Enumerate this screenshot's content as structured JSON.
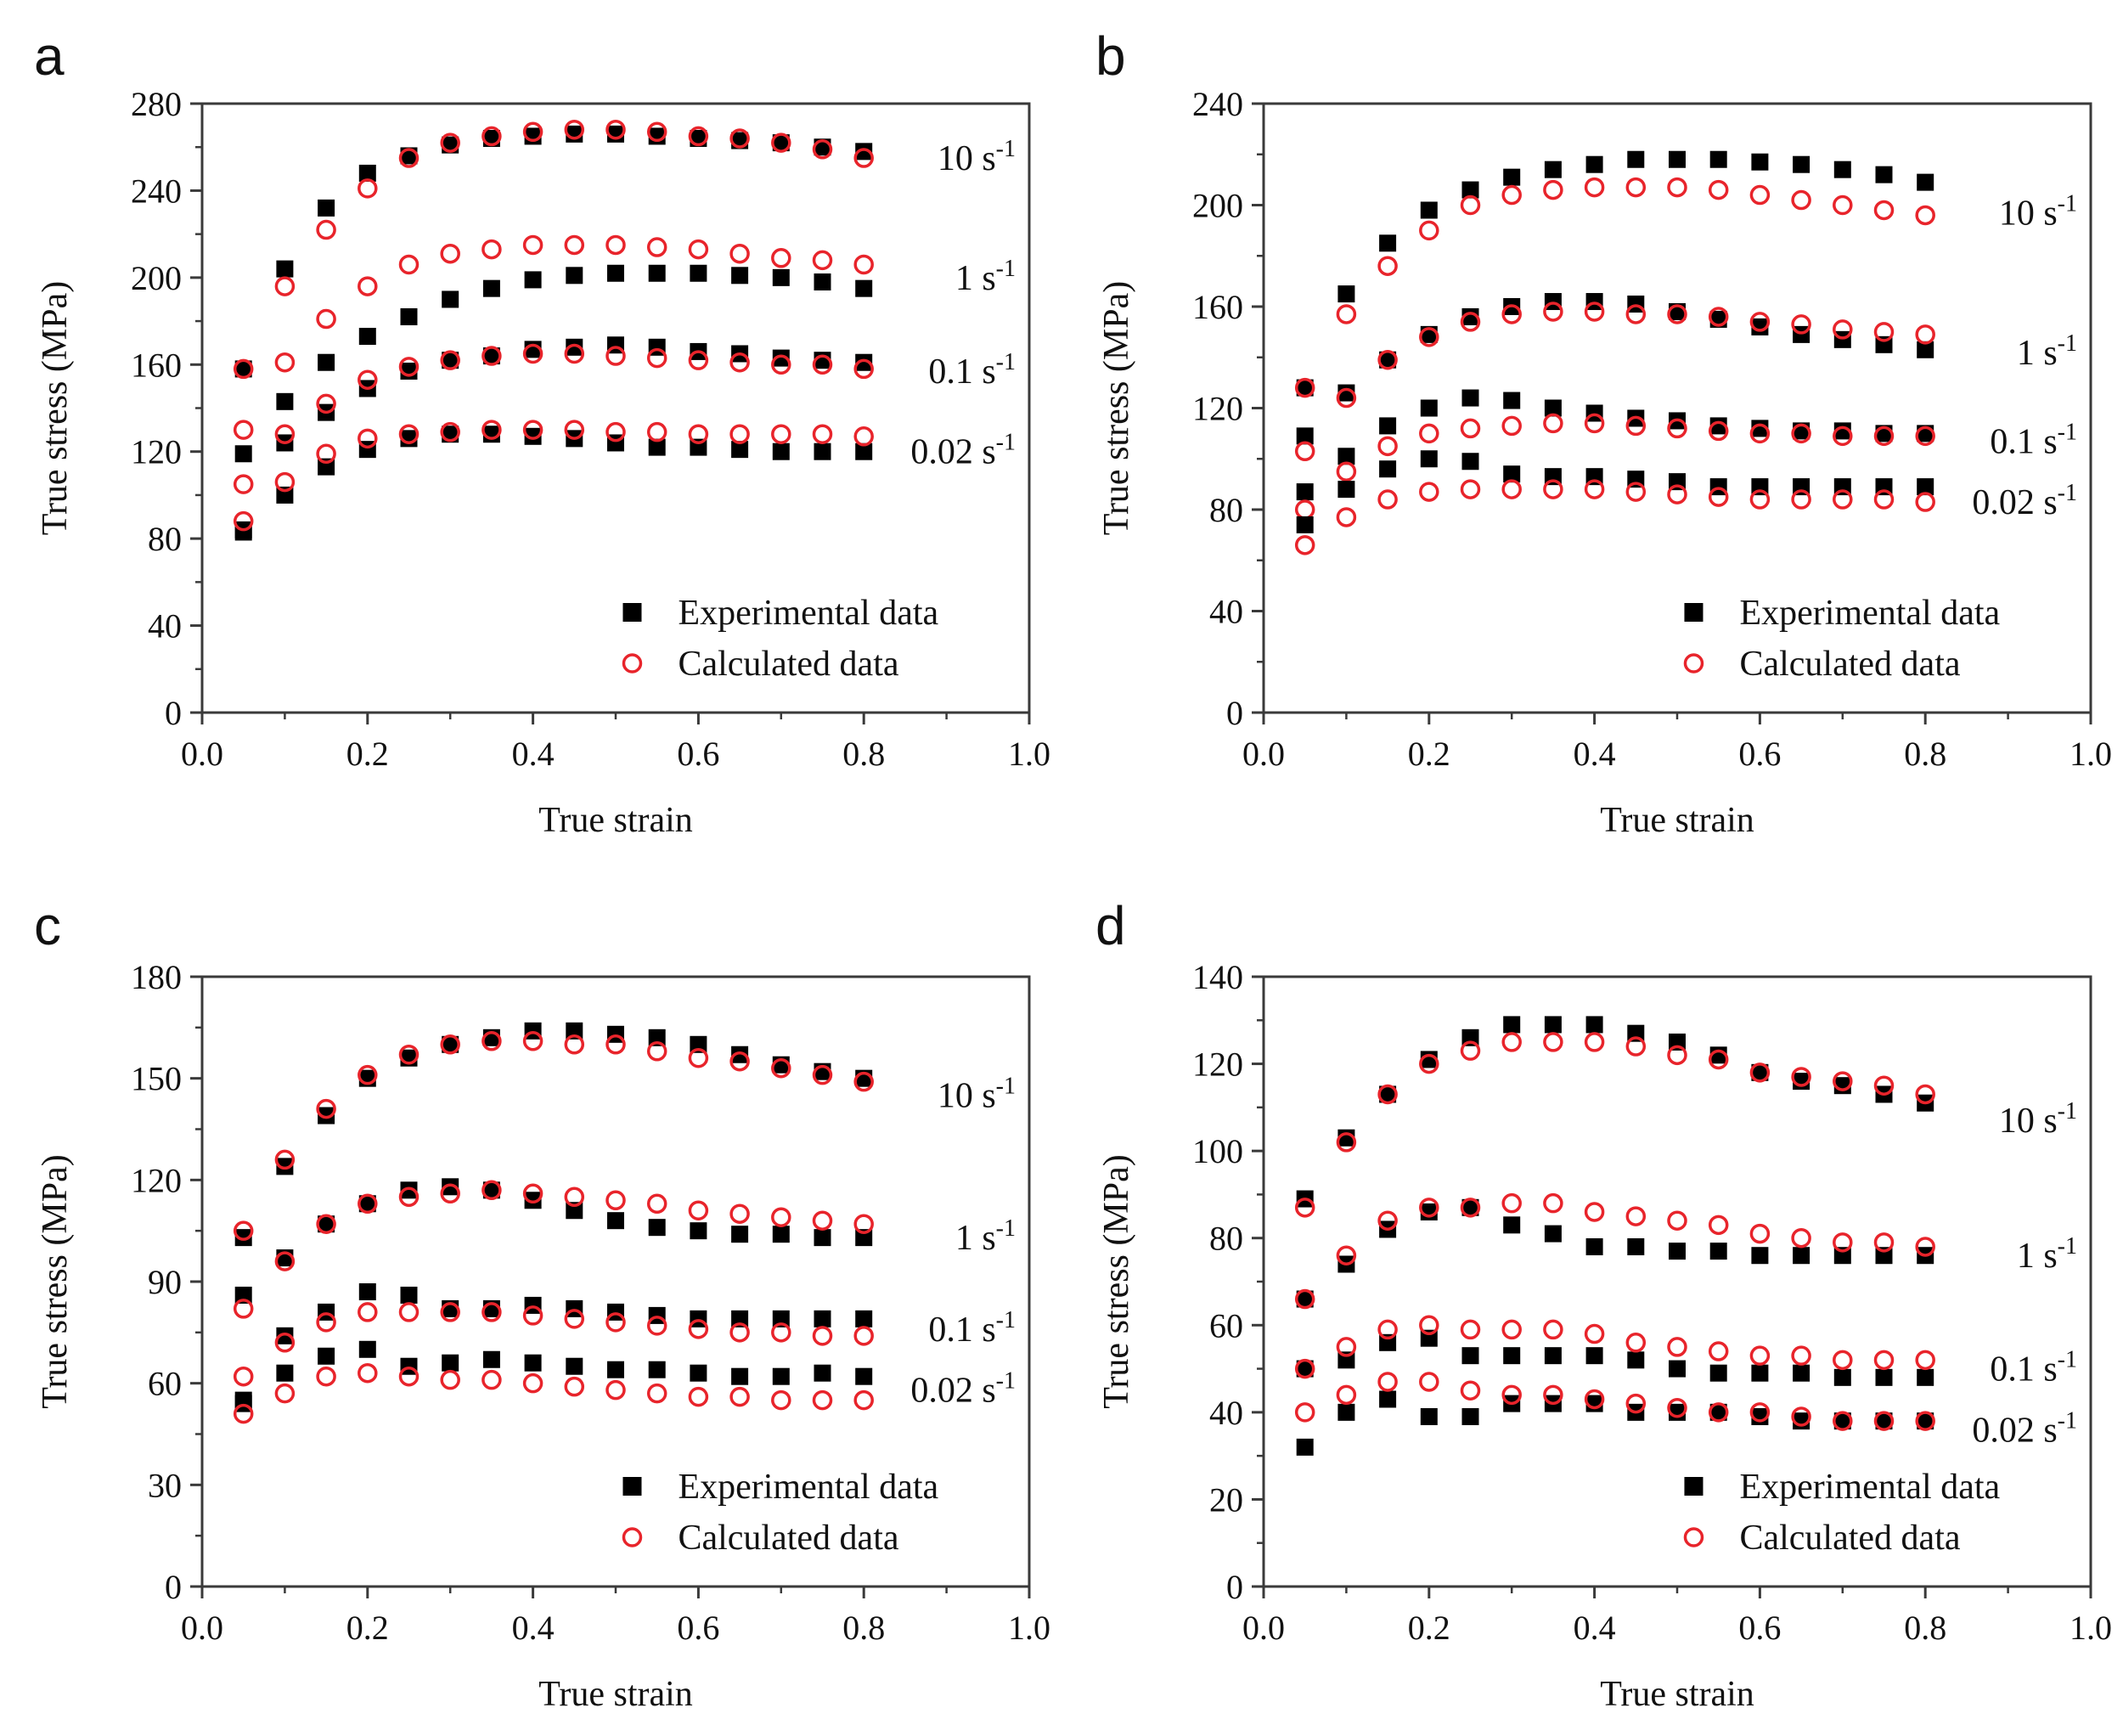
{
  "colors": {
    "experimental": "#000000",
    "calculated": "#e8242b",
    "axis": "#3a3a3a"
  },
  "chart_data": [
    {
      "type": "scatter",
      "panel": "a",
      "xlabel": "True strain",
      "ylabel": "True stress (MPa)",
      "xlim": [
        0,
        1.0
      ],
      "ylim": [
        0,
        280
      ],
      "xticks": [
        "0.0",
        "0.2",
        "0.4",
        "0.6",
        "0.8",
        "1.0"
      ],
      "yticks": [
        "0",
        "40",
        "80",
        "120",
        "160",
        "200",
        "240",
        "280"
      ],
      "legend": {
        "position": "bottom-right",
        "experimental": "Experimental data",
        "calculated": "Calculated data"
      },
      "x": [
        0.05,
        0.1,
        0.15,
        0.2,
        0.25,
        0.3,
        0.35,
        0.4,
        0.45,
        0.5,
        0.55,
        0.6,
        0.65,
        0.7,
        0.75,
        0.8
      ],
      "series": [
        {
          "name": "10 s-1",
          "label": "10 s",
          "label_y": 255,
          "experimental": [
            158,
            204,
            232,
            248,
            256,
            261,
            264,
            265,
            266,
            266,
            265,
            264,
            263,
            262,
            260,
            258
          ],
          "calculated": [
            158,
            196,
            222,
            241,
            255,
            262,
            265,
            267,
            268,
            268,
            267,
            265,
            264,
            262,
            259,
            255
          ]
        },
        {
          "name": "1 s-1",
          "label": "1 s",
          "label_y": 200,
          "experimental": [
            119,
            143,
            161,
            173,
            182,
            190,
            195,
            199,
            201,
            202,
            202,
            202,
            201,
            200,
            198,
            195
          ],
          "calculated": [
            130,
            161,
            181,
            196,
            206,
            211,
            213,
            215,
            215,
            215,
            214,
            213,
            211,
            209,
            208,
            206
          ]
        },
        {
          "name": "0.1 s-1",
          "label": "0.1 s",
          "label_y": 157,
          "experimental": [
            84,
            124,
            138,
            149,
            157,
            162,
            164,
            167,
            168,
            169,
            168,
            166,
            165,
            163,
            162,
            161
          ],
          "calculated": [
            105,
            128,
            142,
            153,
            159,
            162,
            164,
            165,
            165,
            164,
            163,
            162,
            161,
            160,
            160,
            158
          ]
        },
        {
          "name": "0.02 s-1",
          "label": "0.02 s",
          "label_y": 120,
          "experimental": [
            83,
            100,
            113,
            121,
            126,
            128,
            128,
            127,
            126,
            124,
            122,
            122,
            121,
            120,
            120,
            120
          ],
          "calculated": [
            88,
            106,
            119,
            126,
            128,
            129,
            130,
            130,
            130,
            129,
            129,
            128,
            128,
            128,
            128,
            127
          ]
        }
      ]
    },
    {
      "type": "scatter",
      "panel": "b",
      "xlabel": "True strain",
      "ylabel": "True stress (MPa)",
      "xlim": [
        0,
        1.0
      ],
      "ylim": [
        0,
        240
      ],
      "xticks": [
        "0.0",
        "0.2",
        "0.4",
        "0.6",
        "0.8",
        "1.0"
      ],
      "yticks": [
        "0",
        "40",
        "80",
        "120",
        "160",
        "200",
        "240"
      ],
      "legend": {
        "position": "bottom-right",
        "experimental": "Experimental data",
        "calculated": "Calculated data"
      },
      "x": [
        0.05,
        0.1,
        0.15,
        0.2,
        0.25,
        0.3,
        0.35,
        0.4,
        0.45,
        0.5,
        0.55,
        0.6,
        0.65,
        0.7,
        0.75,
        0.8
      ],
      "series": [
        {
          "name": "10 s-1",
          "label": "10 s",
          "label_y": 197,
          "experimental": [
            128,
            165,
            185,
            198,
            206,
            211,
            214,
            216,
            218,
            218,
            218,
            217,
            216,
            214,
            212,
            209
          ],
          "calculated": [
            128,
            157,
            176,
            190,
            200,
            204,
            206,
            207,
            207,
            207,
            206,
            204,
            202,
            200,
            198,
            196
          ]
        },
        {
          "name": "1 s-1",
          "label": "1 s",
          "label_y": 142,
          "experimental": [
            109,
            126,
            139,
            149,
            156,
            160,
            162,
            162,
            161,
            158,
            155,
            152,
            149,
            147,
            145,
            143
          ],
          "calculated": [
            103,
            124,
            139,
            148,
            154,
            157,
            158,
            158,
            157,
            157,
            156,
            154,
            153,
            151,
            150,
            149
          ]
        },
        {
          "name": "0.1 s-1",
          "label": "0.1 s",
          "label_y": 107,
          "experimental": [
            87,
            101,
            113,
            120,
            124,
            123,
            120,
            118,
            116,
            115,
            113,
            112,
            111,
            111,
            110,
            110
          ],
          "calculated": [
            80,
            95,
            105,
            110,
            112,
            113,
            114,
            114,
            113,
            112,
            111,
            110,
            110,
            109,
            109,
            109
          ]
        },
        {
          "name": "0.02 s-1",
          "label": "0.02 s",
          "label_y": 83,
          "experimental": [
            74,
            88,
            96,
            100,
            99,
            94,
            93,
            93,
            92,
            91,
            89,
            89,
            89,
            89,
            89,
            89
          ],
          "calculated": [
            66,
            77,
            84,
            87,
            88,
            88,
            88,
            88,
            87,
            86,
            85,
            84,
            84,
            84,
            84,
            83
          ]
        }
      ]
    },
    {
      "type": "scatter",
      "panel": "c",
      "xlabel": "True strain",
      "ylabel": "True stress (MPa)",
      "xlim": [
        0,
        1.0
      ],
      "ylim": [
        0,
        180
      ],
      "xticks": [
        "0.0",
        "0.2",
        "0.4",
        "0.6",
        "0.8",
        "1.0"
      ],
      "yticks": [
        "0",
        "30",
        "60",
        "90",
        "120",
        "150",
        "180"
      ],
      "legend": {
        "position": "bottom-right",
        "experimental": "Experimental data",
        "calculated": "Calculated data"
      },
      "x": [
        0.05,
        0.1,
        0.15,
        0.2,
        0.25,
        0.3,
        0.35,
        0.4,
        0.45,
        0.5,
        0.55,
        0.6,
        0.65,
        0.7,
        0.75,
        0.8
      ],
      "series": [
        {
          "name": "10 s-1",
          "label": "10 s",
          "label_y": 145,
          "experimental": [
            103,
            124,
            139,
            150,
            156,
            160,
            162,
            164,
            164,
            163,
            162,
            160,
            157,
            154,
            152,
            150
          ],
          "calculated": [
            105,
            126,
            141,
            151,
            157,
            160,
            161,
            161,
            160,
            160,
            158,
            156,
            155,
            153,
            151,
            149
          ]
        },
        {
          "name": "1 s-1",
          "label": "1 s",
          "label_y": 103,
          "experimental": [
            86,
            97,
            107,
            113,
            117,
            118,
            117,
            114,
            111,
            108,
            106,
            105,
            104,
            104,
            103,
            103
          ],
          "calculated": [
            82,
            96,
            107,
            113,
            115,
            116,
            117,
            116,
            115,
            114,
            113,
            111,
            110,
            109,
            108,
            107
          ]
        },
        {
          "name": "0.1 s-1",
          "label": "0.1 s",
          "label_y": 76,
          "experimental": [
            55,
            74,
            81,
            87,
            86,
            82,
            82,
            83,
            82,
            81,
            80,
            79,
            79,
            79,
            79,
            79
          ],
          "calculated": [
            62,
            72,
            78,
            81,
            81,
            81,
            81,
            80,
            79,
            78,
            77,
            76,
            75,
            75,
            74,
            74
          ]
        },
        {
          "name": "0.02 s-1",
          "label": "0.02 s",
          "label_y": 58,
          "experimental": [
            54,
            63,
            68,
            70,
            65,
            66,
            67,
            66,
            65,
            64,
            64,
            63,
            62,
            62,
            63,
            62
          ],
          "calculated": [
            51,
            57,
            62,
            63,
            62,
            61,
            61,
            60,
            59,
            58,
            57,
            56,
            56,
            55,
            55,
            55
          ]
        }
      ]
    },
    {
      "type": "scatter",
      "panel": "d",
      "xlabel": "True strain",
      "ylabel": "True stress (MPa)",
      "xlim": [
        0,
        1.0
      ],
      "ylim": [
        0,
        140
      ],
      "xticks": [
        "0.0",
        "0.2",
        "0.4",
        "0.6",
        "0.8",
        "1.0"
      ],
      "yticks": [
        "0",
        "20",
        "40",
        "60",
        "80",
        "100",
        "120",
        "140"
      ],
      "legend": {
        "position": "bottom-right",
        "experimental": "Experimental data",
        "calculated": "Calculated data"
      },
      "x": [
        0.05,
        0.1,
        0.15,
        0.2,
        0.25,
        0.3,
        0.35,
        0.4,
        0.45,
        0.5,
        0.55,
        0.6,
        0.65,
        0.7,
        0.75,
        0.8
      ],
      "series": [
        {
          "name": "10 s-1",
          "label": "10 s",
          "label_y": 107,
          "experimental": [
            89,
            103,
            113,
            121,
            126,
            129,
            129,
            129,
            127,
            125,
            122,
            118,
            116,
            115,
            113,
            111
          ],
          "calculated": [
            87,
            102,
            113,
            120,
            123,
            125,
            125,
            125,
            124,
            122,
            121,
            118,
            117,
            116,
            115,
            113
          ]
        },
        {
          "name": "1 s-1",
          "label": "1 s",
          "label_y": 76,
          "experimental": [
            66,
            74,
            82,
            86,
            87,
            83,
            81,
            78,
            78,
            77,
            77,
            76,
            76,
            76,
            76,
            76
          ],
          "calculated": [
            66,
            76,
            84,
            87,
            87,
            88,
            88,
            86,
            85,
            84,
            83,
            81,
            80,
            79,
            79,
            78
          ]
        },
        {
          "name": "0.1 s-1",
          "label": "0.1 s",
          "label_y": 50,
          "experimental": [
            50,
            52,
            56,
            57,
            53,
            53,
            53,
            53,
            52,
            50,
            49,
            49,
            49,
            48,
            48,
            48
          ],
          "calculated": [
            50,
            55,
            59,
            60,
            59,
            59,
            59,
            58,
            56,
            55,
            54,
            53,
            53,
            52,
            52,
            52
          ]
        },
        {
          "name": "0.02 s-1",
          "label": "0.02 s",
          "label_y": 36,
          "experimental": [
            32,
            40,
            43,
            39,
            39,
            42,
            42,
            42,
            40,
            40,
            40,
            39,
            38,
            38,
            38,
            38
          ],
          "calculated": [
            40,
            44,
            47,
            47,
            45,
            44,
            44,
            43,
            42,
            41,
            40,
            40,
            39,
            38,
            38,
            38
          ]
        }
      ]
    }
  ]
}
